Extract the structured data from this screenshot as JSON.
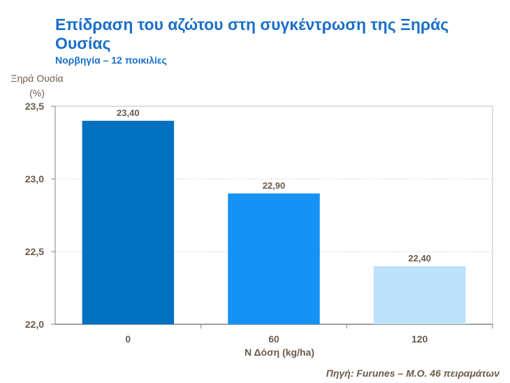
{
  "chart_data": {
    "type": "bar",
    "title": "Επίδραση του αζώτου στη συγκέντρωση της Ξηράς Ουσίας",
    "subtitle": "Νορβηγία – 12 ποικιλίες",
    "ylabel": "Ξηρά Ουσία (%)",
    "xlabel": "Ν Δόση (kg/ha)",
    "categories": [
      "0",
      "60",
      "120"
    ],
    "values": [
      23.4,
      22.9,
      22.4
    ],
    "value_labels": [
      "23,40",
      "22,90",
      "22,40"
    ],
    "bar_colors": [
      "#0070c0",
      "#1592f5",
      "#bde0fb"
    ],
    "ylim": [
      22.0,
      23.5
    ],
    "yticks": [
      22.0,
      22.5,
      23.0,
      23.5
    ],
    "ytick_labels": [
      "22,0",
      "22,5",
      "23,0",
      "23,5"
    ],
    "grid": true,
    "source": "Πηγή: Furunes – Μ.Ο. 46 πειραμάτων"
  },
  "colors": {
    "title": "#1a6fc9",
    "text": "#6b5a4a",
    "grid": "#bfbfbf"
  }
}
